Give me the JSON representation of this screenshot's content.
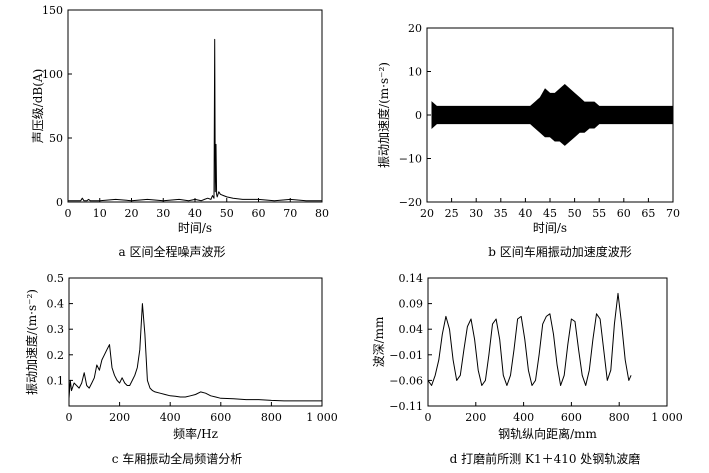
{
  "chart_data": [
    {
      "type": "line",
      "caption": "a 区间全程噪声波形",
      "xlabel": "时间/s",
      "ylabel": "声压级/dB(A)",
      "xlim": [
        0,
        80
      ],
      "ylim": [
        0,
        150
      ],
      "x_ticks": [
        0,
        10,
        20,
        30,
        40,
        50,
        60,
        70,
        80
      ],
      "x_tick_labels": [
        "0",
        "10",
        "20",
        "30",
        "40",
        "50",
        "60",
        "70",
        "80"
      ],
      "y_ticks": [
        0,
        50,
        100,
        150
      ],
      "y_tick_labels": [
        "0",
        "50",
        "100",
        "150"
      ],
      "grid": false,
      "x": [
        0,
        2,
        4,
        4.5,
        5,
        6,
        6.5,
        7,
        10,
        15,
        20,
        25,
        30,
        35,
        38,
        40,
        42,
        43,
        44,
        45,
        45.5,
        46,
        46.2,
        46.4,
        46.6,
        46.8,
        47,
        47.5,
        48,
        49,
        50,
        52,
        55,
        60,
        65,
        70,
        75,
        80
      ],
      "values": [
        1,
        1,
        1,
        3,
        1,
        1,
        2,
        1,
        1,
        2,
        1,
        2,
        1,
        2,
        1,
        2,
        1,
        2,
        3,
        2,
        5,
        3,
        127,
        8,
        45,
        6,
        4,
        8,
        6,
        5,
        4,
        3,
        2,
        2,
        1,
        2,
        1,
        1
      ]
    },
    {
      "type": "line",
      "caption": "b 区间车厢振动加速度波形",
      "xlabel": "时间/s",
      "ylabel": "振动加速度/(m·s⁻²)",
      "xlim": [
        20,
        70
      ],
      "ylim": [
        -20,
        20
      ],
      "x_ticks": [
        20,
        25,
        30,
        35,
        40,
        45,
        50,
        55,
        60,
        65,
        70
      ],
      "x_tick_labels": [
        "20",
        "25",
        "30",
        "35",
        "40",
        "45",
        "50",
        "55",
        "60",
        "65",
        "70"
      ],
      "y_ticks": [
        -20,
        -10,
        0,
        10,
        20
      ],
      "y_tick_labels": [
        "−20",
        "−10",
        "0",
        "10",
        "20"
      ],
      "grid": false,
      "x": [
        21,
        22,
        25,
        28,
        31,
        34,
        37,
        40,
        41,
        42,
        43,
        44,
        45,
        46,
        47,
        48,
        49,
        50,
        51,
        52,
        53,
        54,
        55,
        58,
        61,
        64,
        67,
        70
      ],
      "values_max": [
        3,
        2,
        2,
        2,
        2,
        2,
        2,
        2,
        2,
        3,
        4,
        6,
        5,
        5,
        6,
        7,
        6,
        5,
        4,
        3,
        3,
        3,
        2,
        2,
        2,
        2,
        2,
        2
      ],
      "values_min": [
        -3,
        -2,
        -2,
        -2,
        -2,
        -2,
        -2,
        -2,
        -2,
        -3,
        -4,
        -5,
        -5,
        -6,
        -6,
        -7,
        -6,
        -5,
        -4,
        -4,
        -3,
        -3,
        -2,
        -2,
        -2,
        -2,
        -2,
        -2
      ]
    },
    {
      "type": "line",
      "caption": "c 车厢振动全局频谱分析",
      "xlabel": "频率/Hz",
      "ylabel": "振动加速度/(m·s⁻²)",
      "xlim": [
        0,
        1000
      ],
      "ylim": [
        0,
        0.5
      ],
      "x_ticks": [
        0,
        200,
        400,
        600,
        800,
        1000
      ],
      "x_tick_labels": [
        "0",
        "200",
        "400",
        "600",
        "800",
        "1 000"
      ],
      "y_ticks": [
        0.1,
        0.2,
        0.3,
        0.4,
        0.5
      ],
      "y_tick_labels": [
        "0.1",
        "0.2",
        "0.3",
        "0.4",
        "0.5"
      ],
      "grid": false,
      "x": [
        0,
        5,
        10,
        20,
        30,
        40,
        50,
        60,
        70,
        80,
        90,
        100,
        110,
        120,
        130,
        140,
        150,
        160,
        170,
        180,
        190,
        200,
        210,
        220,
        230,
        240,
        250,
        260,
        270,
        280,
        290,
        300,
        310,
        320,
        330,
        340,
        360,
        380,
        400,
        420,
        440,
        460,
        480,
        500,
        520,
        540,
        560,
        580,
        600,
        650,
        700,
        750,
        800,
        850,
        900,
        950,
        1000
      ],
      "values": [
        0.03,
        0.1,
        0.06,
        0.09,
        0.08,
        0.07,
        0.09,
        0.13,
        0.08,
        0.07,
        0.09,
        0.11,
        0.16,
        0.14,
        0.18,
        0.2,
        0.22,
        0.24,
        0.15,
        0.12,
        0.1,
        0.09,
        0.11,
        0.09,
        0.08,
        0.08,
        0.1,
        0.12,
        0.15,
        0.22,
        0.4,
        0.28,
        0.1,
        0.07,
        0.06,
        0.055,
        0.05,
        0.045,
        0.04,
        0.038,
        0.035,
        0.035,
        0.04,
        0.045,
        0.055,
        0.05,
        0.04,
        0.035,
        0.03,
        0.028,
        0.025,
        0.025,
        0.022,
        0.02,
        0.02,
        0.02,
        0.02
      ]
    },
    {
      "type": "line",
      "caption": "d 打磨前所测 K1＋410 处钢轨波磨",
      "xlabel": "钢轨纵向距离/mm",
      "ylabel": "波深/mm",
      "xlim": [
        0,
        1000
      ],
      "ylim": [
        -0.11,
        0.14
      ],
      "x_ticks": [
        0,
        200,
        400,
        600,
        800,
        1000
      ],
      "x_tick_labels": [
        "0",
        "200",
        "400",
        "600",
        "800",
        "1 000"
      ],
      "y_ticks": [
        -0.11,
        -0.06,
        -0.01,
        0.04,
        0.09,
        0.14
      ],
      "y_tick_labels": [
        "−0.11",
        "−0.06",
        "−0.01",
        "0.04",
        "0.09",
        "0.14"
      ],
      "grid": false,
      "x": [
        0,
        15,
        30,
        45,
        60,
        75,
        90,
        105,
        120,
        135,
        150,
        165,
        180,
        195,
        210,
        225,
        240,
        255,
        270,
        285,
        300,
        315,
        330,
        345,
        360,
        375,
        390,
        405,
        420,
        435,
        450,
        465,
        480,
        495,
        510,
        525,
        540,
        555,
        570,
        585,
        600,
        615,
        630,
        645,
        660,
        675,
        690,
        705,
        720,
        735,
        750,
        765,
        780,
        795,
        810,
        825,
        840,
        850
      ],
      "values": [
        -0.06,
        -0.07,
        -0.05,
        -0.02,
        0.03,
        0.065,
        0.04,
        -0.02,
        -0.06,
        -0.05,
        0.0,
        0.045,
        0.06,
        0.02,
        -0.04,
        -0.07,
        -0.06,
        -0.01,
        0.05,
        0.06,
        0.02,
        -0.05,
        -0.07,
        -0.05,
        0.0,
        0.06,
        0.065,
        0.02,
        -0.04,
        -0.07,
        -0.06,
        -0.01,
        0.05,
        0.065,
        0.07,
        0.03,
        -0.03,
        -0.07,
        -0.05,
        0.01,
        0.06,
        0.055,
        0.0,
        -0.05,
        -0.07,
        -0.04,
        0.02,
        0.07,
        0.06,
        0.0,
        -0.06,
        -0.04,
        0.05,
        0.11,
        0.05,
        -0.02,
        -0.06,
        -0.05
      ]
    }
  ]
}
